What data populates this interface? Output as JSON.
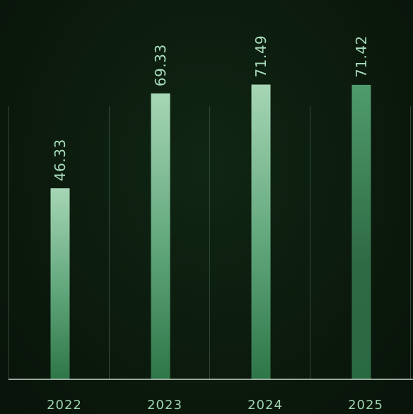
{
  "chart_data": {
    "type": "bar",
    "title": "",
    "xlabel": "",
    "ylabel": "",
    "categories": [
      "2022",
      "2023",
      "2024",
      "2025"
    ],
    "values": [
      46.33,
      69.33,
      71.49,
      71.42
    ],
    "value_labels": [
      "46.33",
      "69.33",
      "71.49",
      "71.42"
    ],
    "ylim": [
      0,
      92
    ],
    "grid": "vertical separators between categories",
    "legend": "none",
    "colors": {
      "background": "#0b1a0d",
      "bar_top": "#9fcfae",
      "bar_bottom": "#2f7a4a",
      "text": "#9fd3b0",
      "axis": "#c9d8cc",
      "separator": "#33483a"
    }
  }
}
